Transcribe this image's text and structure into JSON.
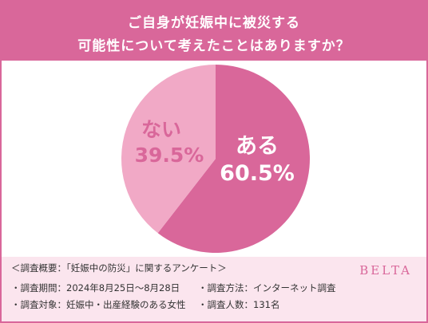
{
  "header": {
    "title_line1": "ご自身が妊娠中に被災する",
    "title_line2": "可能性について考えたことはありますか？"
  },
  "chart_data": {
    "type": "pie",
    "categories": [
      "ある",
      "ない"
    ],
    "values": [
      60.5,
      39.5
    ],
    "value_labels": [
      "60.5%",
      "39.5%"
    ],
    "colors": [
      "#d9679a",
      "#f1a9c6"
    ]
  },
  "footer": {
    "overview": "＜調査概要：「妊娠中の防災」に関するアンケート＞",
    "period": "・調査期間：2024年8月25日〜8月28日",
    "method": "・調査方法：インターネット調査",
    "target": "・調査対象：妊娠中・出産経験のある女性",
    "count": "・調査人数：131名",
    "brand": "BELTA"
  }
}
